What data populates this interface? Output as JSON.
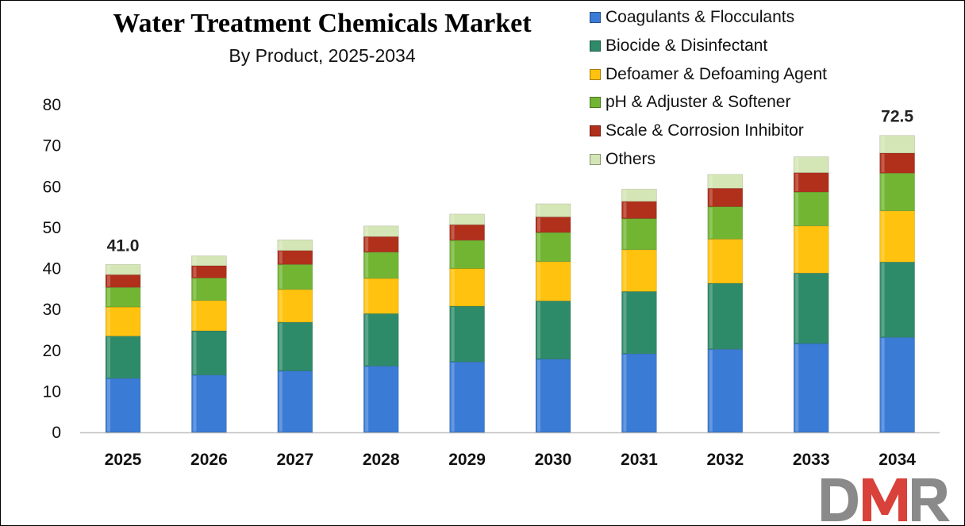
{
  "colors": {
    "coagulants": "#3A7BD5",
    "biocide": "#2E8B6A",
    "defoamer": "#FFC20E",
    "ph": "#72B533",
    "scale": "#B0301C",
    "others": "#D4E6B5",
    "logo_gray": "#8A8A8A",
    "logo_red": "#D9413B"
  },
  "logo": {
    "text": "DMR"
  },
  "chart_data": {
    "type": "bar",
    "stacked": true,
    "title": "Water Treatment Chemicals Market",
    "subtitle": "By Product, 2025-2034",
    "xlabel": "",
    "ylabel": "",
    "ylim": [
      0,
      80
    ],
    "yticks": [
      0,
      10,
      20,
      30,
      40,
      50,
      60,
      70,
      80
    ],
    "grid": false,
    "legend_position": "top-right",
    "categories": [
      "2025",
      "2026",
      "2027",
      "2028",
      "2029",
      "2030",
      "2031",
      "2032",
      "2033",
      "2034"
    ],
    "series": [
      {
        "name": "Coagulants & Flocculants",
        "color_key": "coagulants",
        "values": [
          13.2,
          14.0,
          15.0,
          16.2,
          17.2,
          17.9,
          19.2,
          20.3,
          21.7,
          23.2
        ]
      },
      {
        "name": "Biocide & Disinfectant",
        "color_key": "biocide",
        "values": [
          10.3,
          10.8,
          11.9,
          12.8,
          13.6,
          14.2,
          15.2,
          16.1,
          17.2,
          18.4
        ]
      },
      {
        "name": "Defoamer & Defoaming Agent",
        "color_key": "defoamer",
        "values": [
          7.1,
          7.4,
          8.0,
          8.6,
          9.2,
          9.6,
          10.2,
          10.8,
          11.5,
          12.5
        ]
      },
      {
        "name": "pH & Adjuster & Softener",
        "color_key": "ph",
        "values": [
          4.8,
          5.5,
          6.1,
          6.4,
          6.9,
          7.1,
          7.6,
          7.9,
          8.3,
          9.2
        ]
      },
      {
        "name": "Scale & Corrosion Inhibitor",
        "color_key": "scale",
        "values": [
          3.1,
          3.0,
          3.4,
          3.8,
          3.8,
          3.8,
          4.2,
          4.5,
          4.7,
          4.9
        ]
      },
      {
        "name": "Others",
        "color_key": "others",
        "values": [
          2.5,
          2.4,
          2.6,
          2.6,
          2.6,
          3.2,
          3.0,
          3.4,
          3.9,
          4.3
        ]
      }
    ],
    "annotations": [
      {
        "category": "2025",
        "text": "41.0"
      },
      {
        "category": "2034",
        "text": "72.5"
      }
    ]
  }
}
